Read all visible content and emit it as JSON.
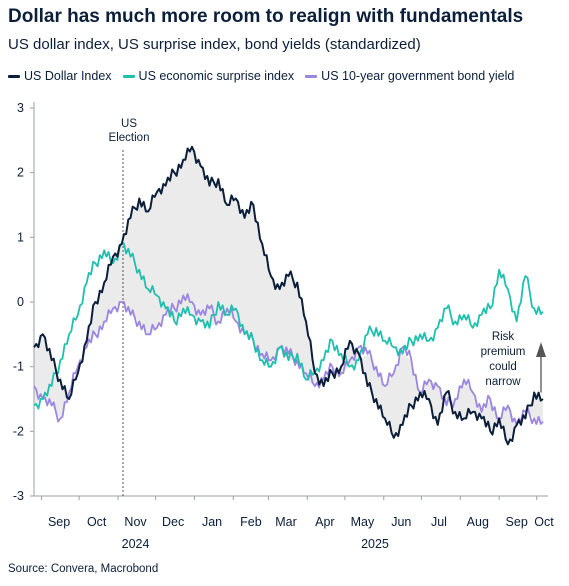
{
  "title": "Dollar has much more room to realign with fundamentals",
  "subtitle": "US dollar index, US surprise index, bond yields (standardized)",
  "source": "Source: Convera, Macrobond",
  "colors": {
    "dollar": "#0b1f3a",
    "surprise": "#1fbfae",
    "yield": "#9b86e0",
    "band": "#ebebeb"
  },
  "chart_data": {
    "type": "line",
    "x_ticks": [
      "Sep",
      "Oct",
      "Nov",
      "Dec",
      "Jan",
      "Feb",
      "Mar",
      "Apr",
      "May",
      "Jun",
      "Jul",
      "Aug",
      "Sep",
      "Oct"
    ],
    "year_labels": [
      {
        "label": "2024",
        "after_month": "Nov"
      },
      {
        "label": "2025",
        "after_month": "May"
      }
    ],
    "ylim": [
      -3,
      3
    ],
    "y_ticks": [
      "3",
      "2",
      "1",
      "0",
      "-1",
      "-2",
      "-3"
    ],
    "annotations": {
      "election": [
        "US",
        "Election"
      ],
      "risk": [
        "Risk",
        "premium",
        "could",
        "narrow"
      ]
    },
    "shaded_band": "area between US Dollar Index and the lower of the other two series",
    "series": [
      {
        "name": "US Dollar Index",
        "color": "#0b1f3a",
        "x": [
          "2024-08-26",
          "2024-09-02",
          "2024-09-09",
          "2024-09-16",
          "2024-09-23",
          "2024-09-30",
          "2024-10-07",
          "2024-10-14",
          "2024-10-21",
          "2024-10-28",
          "2024-11-04",
          "2024-11-11",
          "2024-11-18",
          "2024-11-25",
          "2024-12-02",
          "2024-12-09",
          "2024-12-16",
          "2024-12-23",
          "2024-12-30",
          "2025-01-06",
          "2025-01-13",
          "2025-01-20",
          "2025-01-27",
          "2025-02-03",
          "2025-02-10",
          "2025-02-17",
          "2025-02-24",
          "2025-03-03",
          "2025-03-10",
          "2025-03-17",
          "2025-03-24",
          "2025-03-31",
          "2025-04-07",
          "2025-04-14",
          "2025-04-21",
          "2025-04-28",
          "2025-05-05",
          "2025-05-12",
          "2025-05-19",
          "2025-05-26",
          "2025-06-02",
          "2025-06-09",
          "2025-06-16",
          "2025-06-23",
          "2025-06-30",
          "2025-07-07",
          "2025-07-14",
          "2025-07-21",
          "2025-07-28",
          "2025-08-04",
          "2025-08-11",
          "2025-08-18",
          "2025-08-25",
          "2025-09-01",
          "2025-09-08",
          "2025-09-15",
          "2025-09-22",
          "2025-09-29",
          "2025-10-06"
        ],
        "values": [
          -0.7,
          -0.5,
          -0.9,
          -1.2,
          -1.5,
          -1.1,
          -0.6,
          0.0,
          0.3,
          0.7,
          0.9,
          1.3,
          1.6,
          1.4,
          1.7,
          1.8,
          2.0,
          2.2,
          2.4,
          2.1,
          1.8,
          1.9,
          1.5,
          1.6,
          1.3,
          1.5,
          0.9,
          0.4,
          0.2,
          0.4,
          0.3,
          -0.3,
          -1.1,
          -1.3,
          -1.1,
          -1.0,
          -0.6,
          -0.8,
          -1.3,
          -1.5,
          -1.8,
          -2.1,
          -1.9,
          -1.6,
          -1.4,
          -1.5,
          -1.9,
          -1.4,
          -1.7,
          -1.8,
          -1.7,
          -1.8,
          -2.0,
          -1.8,
          -2.2,
          -1.9,
          -1.8,
          -1.4,
          -1.5
        ]
      },
      {
        "name": "US economic surprise index",
        "color": "#1fbfae",
        "x": [
          "2024-08-26",
          "2024-09-02",
          "2024-09-09",
          "2024-09-16",
          "2024-09-23",
          "2024-09-30",
          "2024-10-07",
          "2024-10-14",
          "2024-10-21",
          "2024-10-28",
          "2024-11-04",
          "2024-11-11",
          "2024-11-18",
          "2024-11-25",
          "2024-12-02",
          "2024-12-09",
          "2024-12-16",
          "2024-12-23",
          "2024-12-30",
          "2025-01-06",
          "2025-01-13",
          "2025-01-20",
          "2025-01-27",
          "2025-02-03",
          "2025-02-10",
          "2025-02-17",
          "2025-02-24",
          "2025-03-03",
          "2025-03-10",
          "2025-03-17",
          "2025-03-24",
          "2025-03-31",
          "2025-04-07",
          "2025-04-14",
          "2025-04-21",
          "2025-04-28",
          "2025-05-05",
          "2025-05-12",
          "2025-05-19",
          "2025-05-26",
          "2025-06-02",
          "2025-06-09",
          "2025-06-16",
          "2025-06-23",
          "2025-06-30",
          "2025-07-07",
          "2025-07-14",
          "2025-07-21",
          "2025-07-28",
          "2025-08-04",
          "2025-08-11",
          "2025-08-18",
          "2025-08-25",
          "2025-09-01",
          "2025-09-08",
          "2025-09-15",
          "2025-09-22",
          "2025-09-29",
          "2025-10-06"
        ],
        "values": [
          -1.6,
          -1.5,
          -1.3,
          -0.9,
          -0.5,
          -0.2,
          0.3,
          0.6,
          0.8,
          0.6,
          0.9,
          0.7,
          0.5,
          0.2,
          0.1,
          -0.1,
          -0.3,
          -0.1,
          -0.2,
          -0.3,
          -0.4,
          0.0,
          -0.2,
          -0.1,
          -0.5,
          -0.6,
          -0.9,
          -1.0,
          -0.7,
          -0.9,
          -0.8,
          -1.2,
          -1.1,
          -0.9,
          -0.6,
          -0.8,
          -1.0,
          -0.9,
          -0.5,
          -0.4,
          -0.6,
          -0.7,
          -0.8,
          -0.6,
          -0.5,
          -0.6,
          -0.4,
          -0.1,
          -0.3,
          -0.2,
          -0.4,
          -0.2,
          -0.1,
          0.5,
          0.2,
          -0.3,
          0.4,
          -0.1,
          -0.15
        ]
      },
      {
        "name": "US 10-year government bond yield",
        "color": "#9b86e0",
        "x": [
          "2024-08-26",
          "2024-09-02",
          "2024-09-09",
          "2024-09-16",
          "2024-09-23",
          "2024-09-30",
          "2024-10-07",
          "2024-10-14",
          "2024-10-21",
          "2024-10-28",
          "2024-11-04",
          "2024-11-11",
          "2024-11-18",
          "2024-11-25",
          "2024-12-02",
          "2024-12-09",
          "2024-12-16",
          "2024-12-23",
          "2024-12-30",
          "2025-01-06",
          "2025-01-13",
          "2025-01-20",
          "2025-01-27",
          "2025-02-03",
          "2025-02-10",
          "2025-02-17",
          "2025-02-24",
          "2025-03-03",
          "2025-03-10",
          "2025-03-17",
          "2025-03-24",
          "2025-03-31",
          "2025-04-07",
          "2025-04-14",
          "2025-04-21",
          "2025-04-28",
          "2025-05-05",
          "2025-05-12",
          "2025-05-19",
          "2025-05-26",
          "2025-06-02",
          "2025-06-09",
          "2025-06-16",
          "2025-06-23",
          "2025-06-30",
          "2025-07-07",
          "2025-07-14",
          "2025-07-21",
          "2025-07-28",
          "2025-08-04",
          "2025-08-11",
          "2025-08-18",
          "2025-08-25",
          "2025-09-01",
          "2025-09-08",
          "2025-09-15",
          "2025-09-22",
          "2025-09-29",
          "2025-10-06"
        ],
        "values": [
          -1.3,
          -1.5,
          -1.6,
          -1.8,
          -1.4,
          -1.0,
          -0.7,
          -0.5,
          -0.3,
          -0.1,
          0.0,
          -0.2,
          -0.3,
          -0.5,
          -0.4,
          -0.2,
          -0.1,
          0.1,
          0.0,
          -0.2,
          -0.1,
          -0.3,
          -0.1,
          -0.3,
          -0.5,
          -0.6,
          -0.8,
          -0.9,
          -0.7,
          -0.8,
          -0.9,
          -1.1,
          -1.3,
          -1.2,
          -1.0,
          -1.1,
          -0.9,
          -0.7,
          -0.8,
          -1.0,
          -1.3,
          -1.1,
          -0.7,
          -0.9,
          -1.4,
          -1.2,
          -1.3,
          -1.6,
          -1.5,
          -1.2,
          -1.4,
          -1.7,
          -1.5,
          -1.8,
          -1.6,
          -1.9,
          -1.7,
          -1.8,
          -1.85
        ]
      }
    ]
  }
}
